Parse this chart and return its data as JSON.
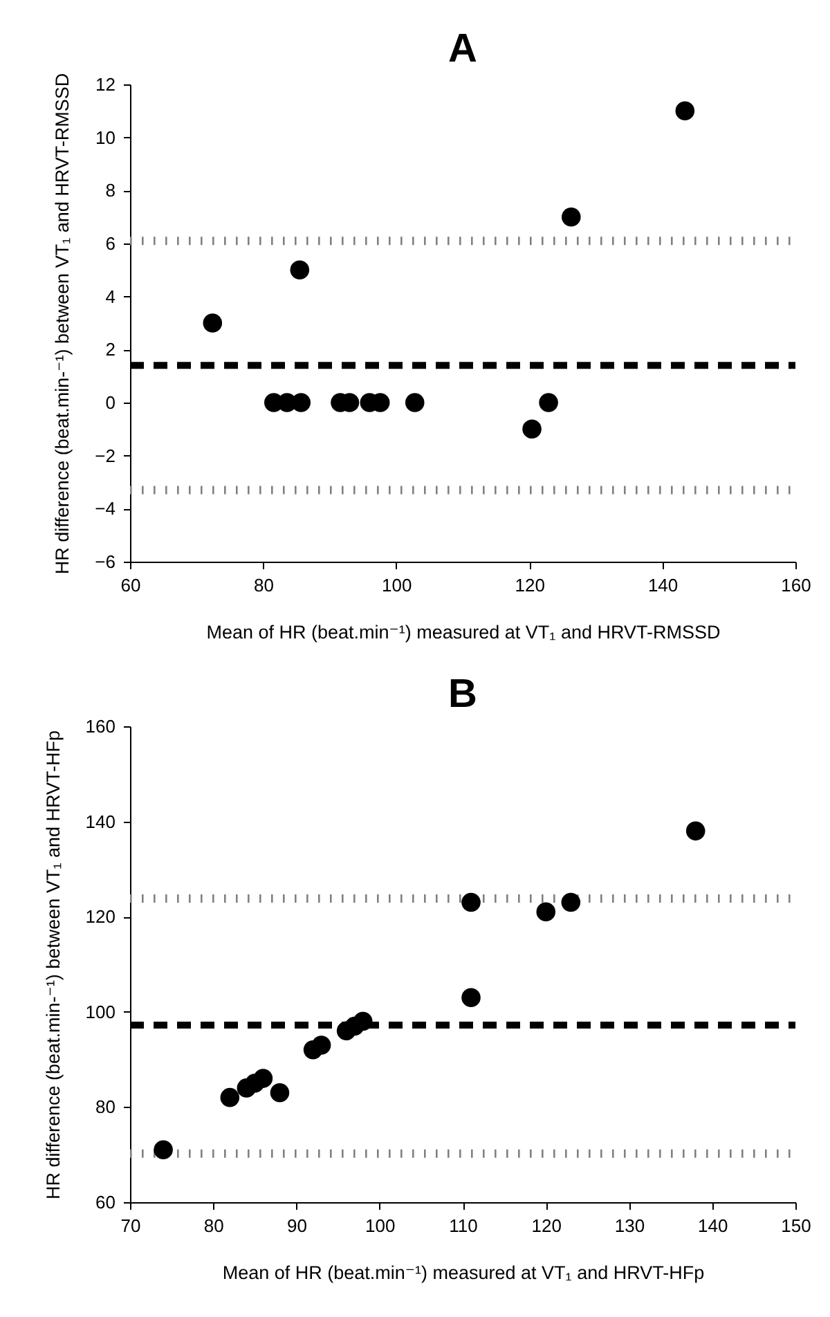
{
  "chart_data": [
    {
      "type": "scatter",
      "title": "A",
      "xlabel": "Mean of HR (beat.min⁻¹) measured at VT₁ and HRVT-RMSSD",
      "ylabel": "HR difference (beat.min-⁻¹) between VT₁ and HRVT-RMSSD",
      "xlim": [
        60,
        160
      ],
      "ylim": [
        -6,
        12
      ],
      "xticks": [
        60,
        80,
        100,
        120,
        140,
        160
      ],
      "yticks": [
        -6,
        -4,
        -2,
        0,
        2,
        4,
        6,
        8,
        10,
        12
      ],
      "marker": "circle",
      "series": [
        {
          "color": "#000000",
          "x": [
            72.4,
            85.5,
            81.6,
            83.6,
            85.7,
            91.6,
            93,
            96,
            97.6,
            102.8,
            120.4,
            122.9,
            126.3,
            143.4
          ],
          "values": [
            3,
            5,
            0,
            0,
            0,
            0,
            0,
            0,
            0,
            0,
            -1,
            0,
            7,
            11
          ]
        }
      ],
      "ref_lines": [
        {
          "axis": "y",
          "value": 1.4,
          "line_style": "dashed",
          "color": "#000000"
        },
        {
          "axis": "y",
          "value": 6.1,
          "line_style": "dotted",
          "color": "#808080"
        },
        {
          "axis": "y",
          "value": -3.3,
          "line_style": "dotted",
          "color": "#808080"
        }
      ]
    },
    {
      "type": "scatter",
      "title": "B",
      "xlabel": "Mean of HR (beat.min⁻¹) measured at VT₁ and HRVT-HFp",
      "ylabel": "HR difference (beat.min-⁻¹) between VT₁ and HRVT-HFp",
      "xlim": [
        70,
        150
      ],
      "ylim": [
        60,
        160
      ],
      "xticks": [
        70,
        80,
        90,
        100,
        110,
        120,
        130,
        140,
        150
      ],
      "yticks": [
        60,
        80,
        100,
        120,
        140,
        160
      ],
      "marker": "circle",
      "series": [
        {
          "color": "#000000",
          "x": [
            74,
            82,
            84,
            85,
            86,
            88,
            92,
            93,
            96,
            97,
            98,
            111,
            111,
            120,
            123,
            138
          ],
          "values": [
            71,
            82,
            84,
            85,
            86,
            83,
            92,
            93,
            96,
            97,
            98,
            103,
            123,
            121,
            123,
            138
          ]
        }
      ],
      "ref_lines": [
        {
          "axis": "y",
          "value": 97.2,
          "line_style": "dashed",
          "color": "#000000"
        },
        {
          "axis": "y",
          "value": 123.8,
          "line_style": "dotted",
          "color": "#808080"
        },
        {
          "axis": "y",
          "value": 70.2,
          "line_style": "dotted",
          "color": "#808080"
        }
      ]
    }
  ]
}
